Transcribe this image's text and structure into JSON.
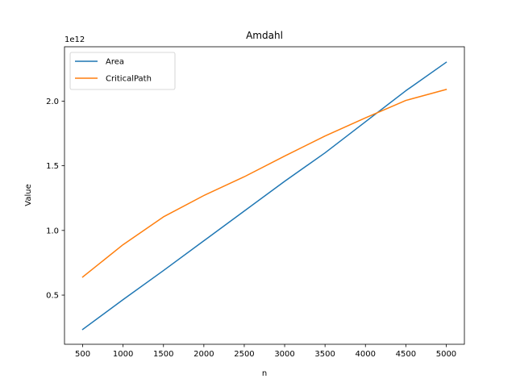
{
  "chart_data": {
    "type": "line",
    "title": "Amdahl",
    "xlabel": "n",
    "ylabel": "Value",
    "y_offset_label": "1e12",
    "x": [
      500,
      1000,
      1500,
      2000,
      2500,
      3000,
      3500,
      4000,
      4500,
      5000
    ],
    "series": [
      {
        "name": "Area",
        "color": "#1f77b4",
        "values": [
          0.235,
          0.465,
          0.69,
          0.92,
          1.15,
          1.38,
          1.6,
          1.84,
          2.08,
          2.3
        ]
      },
      {
        "name": "CriticalPath",
        "color": "#ff7f0e",
        "values": [
          0.64,
          0.89,
          1.105,
          1.27,
          1.415,
          1.575,
          1.73,
          1.87,
          2.005,
          2.09
        ]
      }
    ],
    "xlim": [
      275,
      5225
    ],
    "ylim": [
      0.12,
      2.42
    ],
    "x_ticks": [
      500,
      1000,
      1500,
      2000,
      2500,
      3000,
      3500,
      4000,
      4500,
      5000
    ],
    "x_tick_labels": [
      "500",
      "1000",
      "1500",
      "2000",
      "2500",
      "3000",
      "3500",
      "4000",
      "4500",
      "5000"
    ],
    "y_ticks": [
      0.5,
      1.0,
      1.5,
      2.0
    ],
    "y_tick_labels": [
      "0.5",
      "1.0",
      "1.5",
      "2.0"
    ],
    "grid": false,
    "legend_position": "top-left"
  }
}
